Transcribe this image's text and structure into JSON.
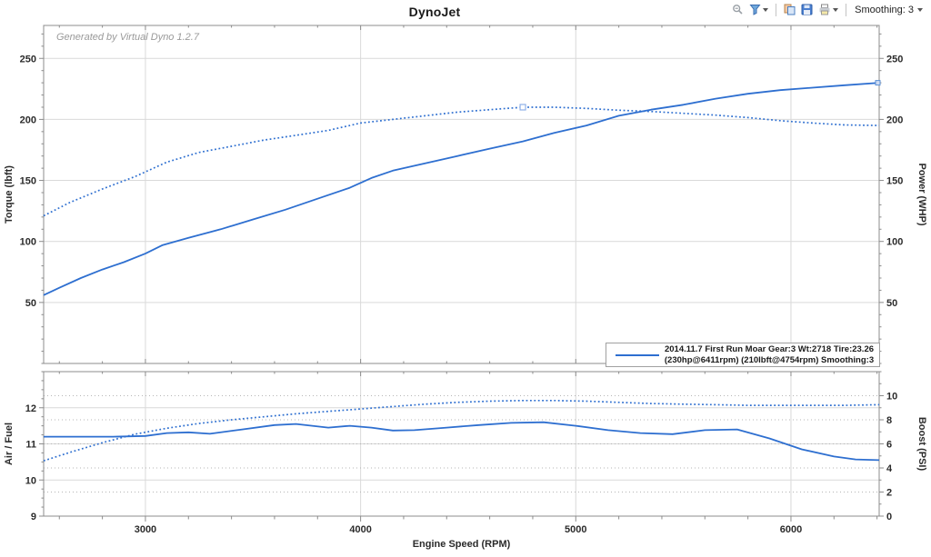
{
  "header": {
    "title": "DynoJet",
    "toolbar": {
      "icons": [
        "zoom-icon",
        "chart-filter-icon",
        "copy-image-icon",
        "save-icon",
        "print-icon"
      ],
      "smoothing_label": "Smoothing: 3"
    }
  },
  "watermark": "Generated by Virtual Dyno 1.2.7",
  "legend": {
    "line1": "2014.11.7 First Run Moar  Gear:3 Wt:2718 Tire:23.26",
    "line2": "(230hp@6411rpm) (210lbft@4754rpm) Smoothing:3"
  },
  "colors": {
    "line_blue": "#2e6fd0",
    "marker_blue": "#8fb0e8",
    "grid_solid": "#d9d9d9",
    "grid_dashed": "#b5b5b5",
    "axis": "#8c8c8c",
    "tick_text": "#2b2b2b"
  },
  "chart_data": [
    {
      "type": "line",
      "title": "DynoJet",
      "x": {
        "label": "Engine Speed (RPM)",
        "range": [
          2527,
          6410
        ],
        "major_ticks": [
          3000,
          4000,
          5000,
          6000
        ],
        "minor_step": 200,
        "show_labels": false
      },
      "left_axis": {
        "label": "Torque (lbft)",
        "range": [
          0,
          277
        ],
        "major_ticks": [
          50,
          100,
          150,
          200,
          250
        ],
        "minor_step": 10
      },
      "right_axis": {
        "label": "Power (WHP)",
        "range": [
          0,
          277
        ],
        "major_ticks": [
          50,
          100,
          150,
          200,
          250
        ],
        "minor_step": 10
      },
      "gridlines": {
        "vertical": [
          3000,
          4000,
          5000,
          6000
        ],
        "horizontal_solid": {
          "axis": "left",
          "values": [
            50,
            100,
            150,
            200,
            250
          ]
        },
        "horizontal_dashed": {
          "axis": "left",
          "values": []
        }
      },
      "series": [
        {
          "name": "Power (WHP)",
          "axis": "right",
          "style": "solid",
          "end_marker": true,
          "points": [
            [
              2527,
              56
            ],
            [
              2600,
              62
            ],
            [
              2700,
              70
            ],
            [
              2800,
              77
            ],
            [
              2900,
              83
            ],
            [
              3000,
              90
            ],
            [
              3080,
              97
            ],
            [
              3200,
              103
            ],
            [
              3350,
              110
            ],
            [
              3500,
              118
            ],
            [
              3650,
              126
            ],
            [
              3800,
              135
            ],
            [
              3950,
              144
            ],
            [
              4050,
              152
            ],
            [
              4150,
              158
            ],
            [
              4300,
              164
            ],
            [
              4450,
              170
            ],
            [
              4600,
              176
            ],
            [
              4754,
              182
            ],
            [
              4900,
              189
            ],
            [
              5050,
              195
            ],
            [
              5200,
              203
            ],
            [
              5350,
              208
            ],
            [
              5500,
              212
            ],
            [
              5650,
              217
            ],
            [
              5800,
              221
            ],
            [
              5950,
              224
            ],
            [
              6100,
              226
            ],
            [
              6250,
              228
            ],
            [
              6410,
              230
            ]
          ]
        },
        {
          "name": "Torque (lbft)",
          "axis": "left",
          "style": "dotted",
          "markers": [
            [
              4754,
              210
            ]
          ],
          "points": [
            [
              2527,
              121
            ],
            [
              2650,
              132
            ],
            [
              2800,
              143
            ],
            [
              2950,
              153
            ],
            [
              3100,
              165
            ],
            [
              3250,
              173
            ],
            [
              3400,
              178
            ],
            [
              3550,
              183
            ],
            [
              3700,
              187
            ],
            [
              3850,
              191
            ],
            [
              4000,
              197
            ],
            [
              4150,
              200
            ],
            [
              4300,
              203
            ],
            [
              4450,
              206
            ],
            [
              4600,
              208
            ],
            [
              4754,
              210
            ],
            [
              4900,
              210
            ],
            [
              5050,
              209
            ],
            [
              5200,
              207.5
            ],
            [
              5350,
              206.5
            ],
            [
              5500,
              205
            ],
            [
              5650,
              203.5
            ],
            [
              5800,
              201.5
            ],
            [
              5950,
              199
            ],
            [
              6100,
              197
            ],
            [
              6250,
              195.5
            ],
            [
              6410,
              195
            ]
          ]
        }
      ]
    },
    {
      "type": "line",
      "x": {
        "label": "Engine Speed (RPM)",
        "range": [
          2527,
          6410
        ],
        "major_ticks": [
          3000,
          4000,
          5000,
          6000
        ],
        "minor_step": 200,
        "show_labels": true
      },
      "left_axis": {
        "label": "Air / Fuel",
        "range": [
          9,
          13
        ],
        "major_ticks": [
          9,
          10,
          11,
          12
        ],
        "minor_step": 0.25
      },
      "right_axis": {
        "label": "Boost (PSI)",
        "range": [
          0,
          12
        ],
        "major_ticks": [
          0,
          2,
          4,
          6,
          8,
          10
        ],
        "minor_step": 1
      },
      "gridlines": {
        "vertical": [
          3000,
          4000,
          5000,
          6000
        ],
        "horizontal_solid": {
          "axis": "left",
          "values": [
            10,
            11,
            12
          ]
        },
        "horizontal_dashed": {
          "axis": "right",
          "values": [
            2,
            4,
            6,
            8,
            10
          ]
        }
      },
      "series": [
        {
          "name": "Air / Fuel",
          "axis": "left",
          "style": "solid",
          "points": [
            [
              2527,
              11.2
            ],
            [
              2700,
              11.2
            ],
            [
              2850,
              11.2
            ],
            [
              3000,
              11.22
            ],
            [
              3100,
              11.3
            ],
            [
              3200,
              11.32
            ],
            [
              3300,
              11.28
            ],
            [
              3450,
              11.4
            ],
            [
              3600,
              11.52
            ],
            [
              3700,
              11.55
            ],
            [
              3850,
              11.45
            ],
            [
              3950,
              11.5
            ],
            [
              4050,
              11.45
            ],
            [
              4150,
              11.37
            ],
            [
              4250,
              11.38
            ],
            [
              4400,
              11.45
            ],
            [
              4550,
              11.52
            ],
            [
              4700,
              11.58
            ],
            [
              4850,
              11.6
            ],
            [
              5000,
              11.5
            ],
            [
              5150,
              11.38
            ],
            [
              5300,
              11.3
            ],
            [
              5450,
              11.27
            ],
            [
              5600,
              11.38
            ],
            [
              5750,
              11.4
            ],
            [
              5900,
              11.15
            ],
            [
              6050,
              10.85
            ],
            [
              6200,
              10.65
            ],
            [
              6300,
              10.57
            ],
            [
              6410,
              10.55
            ]
          ]
        },
        {
          "name": "Boost (PSI)",
          "axis": "right",
          "style": "dotted",
          "points": [
            [
              2527,
              4.6
            ],
            [
              2650,
              5.3
            ],
            [
              2800,
              6.1
            ],
            [
              2950,
              6.8
            ],
            [
              3100,
              7.3
            ],
            [
              3250,
              7.7
            ],
            [
              3400,
              8.0
            ],
            [
              3550,
              8.25
            ],
            [
              3700,
              8.5
            ],
            [
              3850,
              8.7
            ],
            [
              4000,
              8.9
            ],
            [
              4150,
              9.1
            ],
            [
              4300,
              9.3
            ],
            [
              4450,
              9.45
            ],
            [
              4600,
              9.55
            ],
            [
              4754,
              9.6
            ],
            [
              4900,
              9.6
            ],
            [
              5050,
              9.55
            ],
            [
              5200,
              9.45
            ],
            [
              5350,
              9.35
            ],
            [
              5500,
              9.3
            ],
            [
              5650,
              9.25
            ],
            [
              5800,
              9.2
            ],
            [
              5950,
              9.2
            ],
            [
              6100,
              9.2
            ],
            [
              6250,
              9.2
            ],
            [
              6410,
              9.25
            ]
          ]
        }
      ]
    }
  ]
}
